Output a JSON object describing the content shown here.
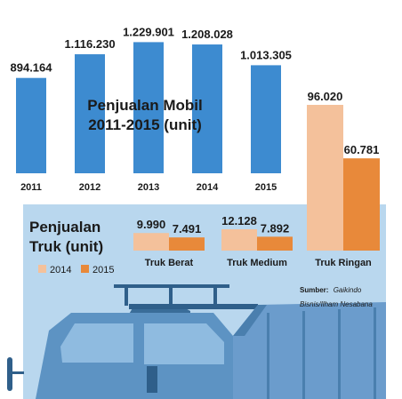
{
  "colors": {
    "car_bar": "#3d8bd0",
    "truck_2014": "#f4c19b",
    "truck_2015": "#e8893a",
    "panel_bg": "#b9d7ee",
    "truck_body": "#5d93c3",
    "truck_dark": "#2f5f8a"
  },
  "chart_data": [
    {
      "type": "bar",
      "title": "Penjualan Mobil 2011-2015 (unit)",
      "title_lines": [
        "Penjualan Mobil",
        "2011-2015 (unit)"
      ],
      "categories": [
        "2011",
        "2012",
        "2013",
        "2014",
        "2015"
      ],
      "values": [
        894164,
        1116230,
        1229901,
        1208028,
        1013305
      ],
      "value_labels": [
        "894.164",
        "1.116.230",
        "1.229.901",
        "1.208.028",
        "1.013.305"
      ],
      "ylim": [
        0,
        1300000
      ],
      "grid": false
    },
    {
      "type": "bar",
      "title": "Penjualan Truk (unit)",
      "title_lines": [
        "Penjualan",
        "Truk (unit)"
      ],
      "categories": [
        "Truk Berat",
        "Truk Medium",
        "Truk Ringan"
      ],
      "series": [
        {
          "name": "2014",
          "values": [
            9990,
            12128,
            96020
          ],
          "value_labels": [
            "9.990",
            "12.128",
            "96.020"
          ]
        },
        {
          "name": "2015",
          "values": [
            7491,
            7892,
            60781
          ],
          "value_labels": [
            "7.491",
            "7.892",
            "60.781"
          ]
        }
      ],
      "legend": "top-left",
      "grid": false
    }
  ],
  "source": {
    "label": "Sumber:",
    "name": "Gaikindo",
    "credit": "Bisnis/Ilham Nesabana"
  }
}
